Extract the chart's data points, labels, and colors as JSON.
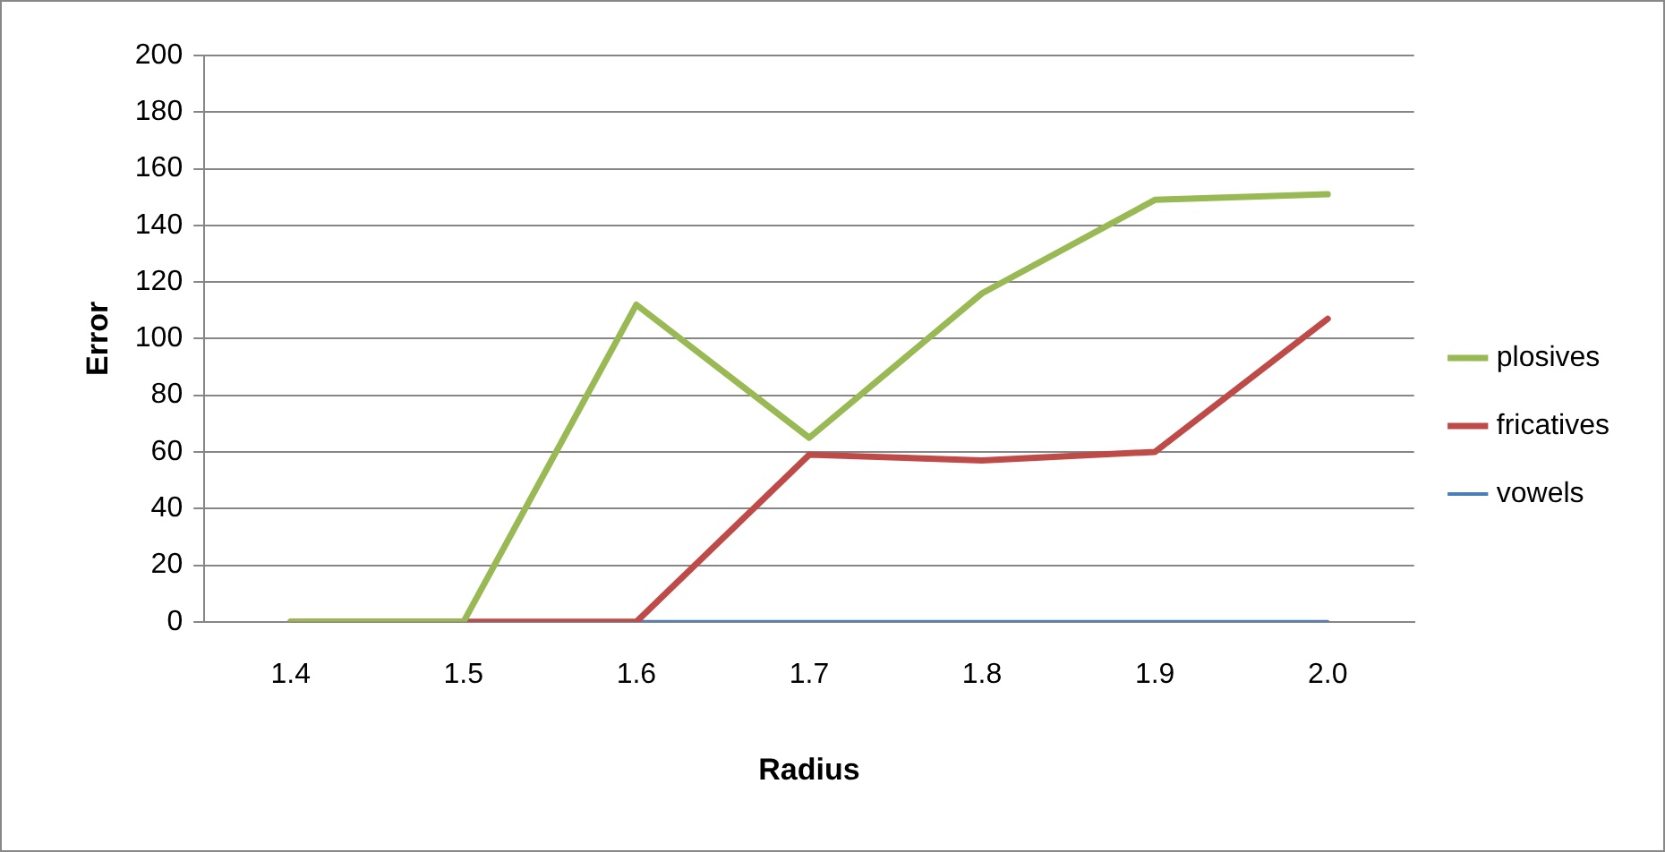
{
  "chart_data": {
    "type": "line",
    "xlabel": "Radius",
    "ylabel": "Error",
    "categories": [
      "1.4",
      "1.5",
      "1.6",
      "1.7",
      "1.8",
      "1.9",
      "2.0"
    ],
    "series": [
      {
        "name": "vowels",
        "color": "#4a7ebb",
        "values": [
          0,
          0,
          0,
          0,
          0,
          0,
          0
        ]
      },
      {
        "name": "fricatives",
        "color": "#be4b48",
        "values": [
          0,
          0,
          0,
          59,
          57,
          60,
          107
        ]
      },
      {
        "name": "plosives",
        "color": "#98b954",
        "values": [
          0,
          0,
          112,
          65,
          116,
          149,
          151
        ]
      }
    ],
    "ylim": [
      0,
      200
    ],
    "yticks": [
      0,
      20,
      40,
      60,
      80,
      100,
      120,
      140,
      160,
      180,
      200
    ],
    "grid": "y",
    "legend": "right",
    "marker": "none",
    "line_style": "solid"
  }
}
